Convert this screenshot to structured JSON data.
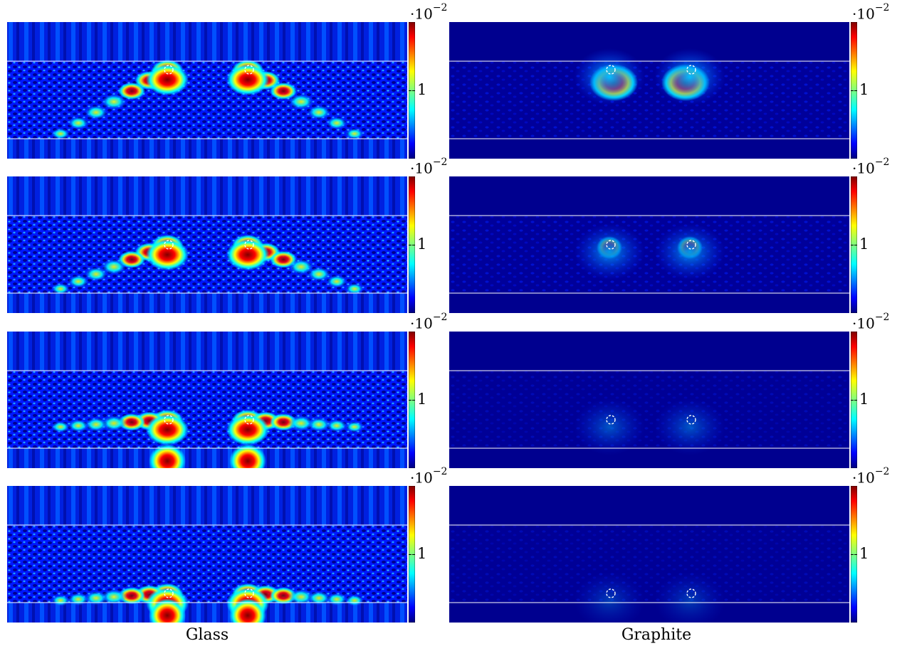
{
  "chart_data": {
    "type": "heatmap",
    "colormap": "jet",
    "columns": [
      "Glass",
      "Graphite"
    ],
    "rows": 4,
    "colorbar": {
      "exponent_base": "·10",
      "exponent_power": "−2",
      "tick_label": "1",
      "tick_value": 1
    },
    "interface_lines": "white",
    "scatterers_per_panel": 2,
    "colors": {
      "background": "#00008f",
      "jet_low": "#00007f",
      "jet_high": "#7f0000",
      "interface": "#ffffff"
    }
  }
}
